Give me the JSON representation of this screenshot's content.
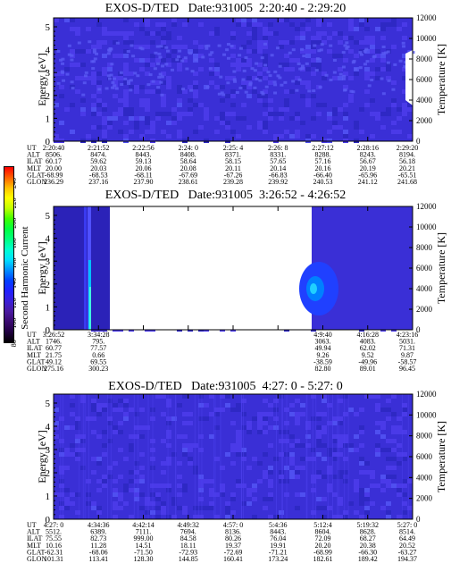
{
  "colorbar": {
    "label": "Second Harmonic Current",
    "ticks": [
      "240",
      "220",
      "200",
      "180",
      "160",
      "140",
      "120",
      "100",
      "80"
    ],
    "colors": [
      "#ff0000",
      "#ff6000",
      "#ffc000",
      "#ffff00",
      "#c0ff00",
      "#40ff00",
      "#00ff40",
      "#00ff80",
      "#00ffd0",
      "#00e0ff",
      "#0090ff",
      "#0040ff",
      "#2020ff",
      "#3a1fd8",
      "#4a1aa0",
      "#3a0a70",
      "#200040",
      "#000000"
    ]
  },
  "panels": [
    {
      "title": "EXOS-D/TED   Date:931005  2:20:40 - 2:29:20",
      "ylabel": "Energy [eV]",
      "y2label": "Temperature [K]",
      "yticks": [
        "0",
        "1",
        "2",
        "3",
        "4",
        "5"
      ],
      "y2ticks": [
        "0",
        "2000",
        "4000",
        "6000",
        "8000",
        "10000",
        "12000"
      ],
      "data_start": 0.0,
      "data_end": 1.0,
      "table": [
        {
          "label": "UT",
          "values": [
            "2:20:40",
            "2:21:52",
            "2:22:56",
            "2:24: 0",
            "2:25: 4",
            "2:26: 8",
            "2:27:12",
            "2:28:16",
            "2:29:20"
          ]
        },
        {
          "label": "ALT",
          "values": [
            "8506.",
            "8474.",
            "8443.",
            "8408.",
            "8371.",
            "8331.",
            "8288.",
            "8243.",
            "8194."
          ]
        },
        {
          "label": "ILAT",
          "values": [
            "60.17",
            "59.62",
            "59.13",
            "58.64",
            "58.15",
            "57.65",
            "57.16",
            "56.67",
            "56.18"
          ]
        },
        {
          "label": "MLT",
          "values": [
            "20.00",
            "20.03",
            "20.06",
            "20.08",
            "20.11",
            "20.14",
            "20.16",
            "20.19",
            "20.21"
          ]
        },
        {
          "label": "GLAT",
          "values": [
            "-68.99",
            "-68.53",
            "-68.11",
            "-67.69",
            "-67.26",
            "-66.83",
            "-66.40",
            "-65.96",
            "-65.51"
          ]
        },
        {
          "label": "GLON",
          "values": [
            "236.29",
            "237.16",
            "237.90",
            "238.61",
            "239.28",
            "239.92",
            "240.53",
            "241.12",
            "241.68"
          ]
        }
      ]
    },
    {
      "title": "EXOS-D/TED   Date:931005  3:26:52 - 4:26:52",
      "ylabel": "Energy [eV]",
      "y2label": "Temperature [K]",
      "yticks": [
        "0",
        "1",
        "2",
        "3",
        "4",
        "5"
      ],
      "y2ticks": [
        "0",
        "2000",
        "4000",
        "6000",
        "8000",
        "10000",
        "12000"
      ],
      "data_start": 0.0,
      "data_end": 1.0,
      "table": [
        {
          "label": "UT",
          "values": [
            "3:26:52",
            "3:34:28",
            "",
            "",
            "",
            "",
            "4:9:40",
            "4:16:28",
            "4:23:16"
          ]
        },
        {
          "label": "ALT",
          "values": [
            "1746.",
            "795.",
            "",
            "",
            "",
            "",
            "3063.",
            "4083.",
            "5031."
          ]
        },
        {
          "label": "ILAT",
          "values": [
            "60.77",
            "77.57",
            "",
            "",
            "",
            "",
            "49.94",
            "62.02",
            "71.31"
          ]
        },
        {
          "label": "MLT",
          "values": [
            "21.75",
            "0.66",
            "",
            "",
            "",
            "",
            "9.26",
            "9.52",
            "9.87"
          ]
        },
        {
          "label": "GLAT",
          "values": [
            "49.12",
            "69.55",
            "",
            "",
            "",
            "",
            "-38.59",
            "-49.96",
            "-58.57"
          ]
        },
        {
          "label": "GLON",
          "values": [
            "275.16",
            "300.23",
            "",
            "",
            "",
            "",
            "82.80",
            "89.01",
            "96.45"
          ]
        }
      ]
    },
    {
      "title": "EXOS-D/TED   Date:931005  4:27: 0 - 5:27: 0",
      "ylabel": "Energy [eV]",
      "y2label": "Temperature [K]",
      "yticks": [
        "0",
        "1",
        "2",
        "3",
        "4",
        "5"
      ],
      "y2ticks": [
        "0",
        "2000",
        "4000",
        "6000",
        "8000",
        "10000",
        "12000"
      ],
      "data_start": 0.0,
      "data_end": 1.0,
      "table": [
        {
          "label": "UT",
          "values": [
            "4:27: 0",
            "4:34:36",
            "4:42:14",
            "4:49:32",
            "4:57: 0",
            "5:4:36",
            "5:12:4",
            "5:19:32",
            "5:27: 0"
          ]
        },
        {
          "label": "ALT",
          "values": [
            "5512.",
            "6389.",
            "7111.",
            "7694.",
            "8136.",
            "8443.",
            "8604.",
            "8628.",
            "8514."
          ]
        },
        {
          "label": "ILAT",
          "values": [
            "75.55",
            "82.73",
            "999.00",
            "84.58",
            "80.26",
            "76.04",
            "72.09",
            "68.27",
            "64.49"
          ]
        },
        {
          "label": "MLT",
          "values": [
            "10.16",
            "11.28",
            "14.51",
            "18.11",
            "19.37",
            "19.91",
            "20.20",
            "20.38",
            "20.52"
          ]
        },
        {
          "label": "GLAT",
          "values": [
            "-62.31",
            "-68.06",
            "-71.50",
            "-72.93",
            "-72.69",
            "-71.21",
            "-68.99",
            "-66.30",
            "-63.27"
          ]
        },
        {
          "label": "GLON",
          "values": [
            "101.31",
            "113.41",
            "128.30",
            "144.85",
            "160.41",
            "173.24",
            "182.61",
            "189.42",
            "194.37"
          ]
        }
      ]
    }
  ],
  "chart_data": [
    {
      "type": "heatmap",
      "title": "EXOS-D/TED   Date:931005  2:20:40 - 2:29:20",
      "xlabel": "UT",
      "ylabel": "Energy [eV]",
      "y2label": "Temperature [K]",
      "ylim": [
        0,
        5
      ],
      "y2lim": [
        0,
        12000
      ],
      "colorbar_label": "Second Harmonic Current",
      "colorbar_range": [
        80,
        240
      ]
    },
    {
      "type": "heatmap",
      "title": "EXOS-D/TED   Date:931005  3:26:52 - 4:26:52",
      "xlabel": "UT",
      "ylabel": "Energy [eV]",
      "y2label": "Temperature [K]",
      "ylim": [
        0,
        5
      ],
      "y2lim": [
        0,
        12000
      ],
      "data_gap": [
        "3:34:28",
        "4:9:40"
      ]
    },
    {
      "type": "heatmap",
      "title": "EXOS-D/TED   Date:931005  4:27: 0 - 5:27: 0",
      "xlabel": "UT",
      "ylabel": "Energy [eV]",
      "y2label": "Temperature [K]",
      "ylim": [
        0,
        5
      ],
      "y2lim": [
        0,
        12000
      ]
    }
  ]
}
